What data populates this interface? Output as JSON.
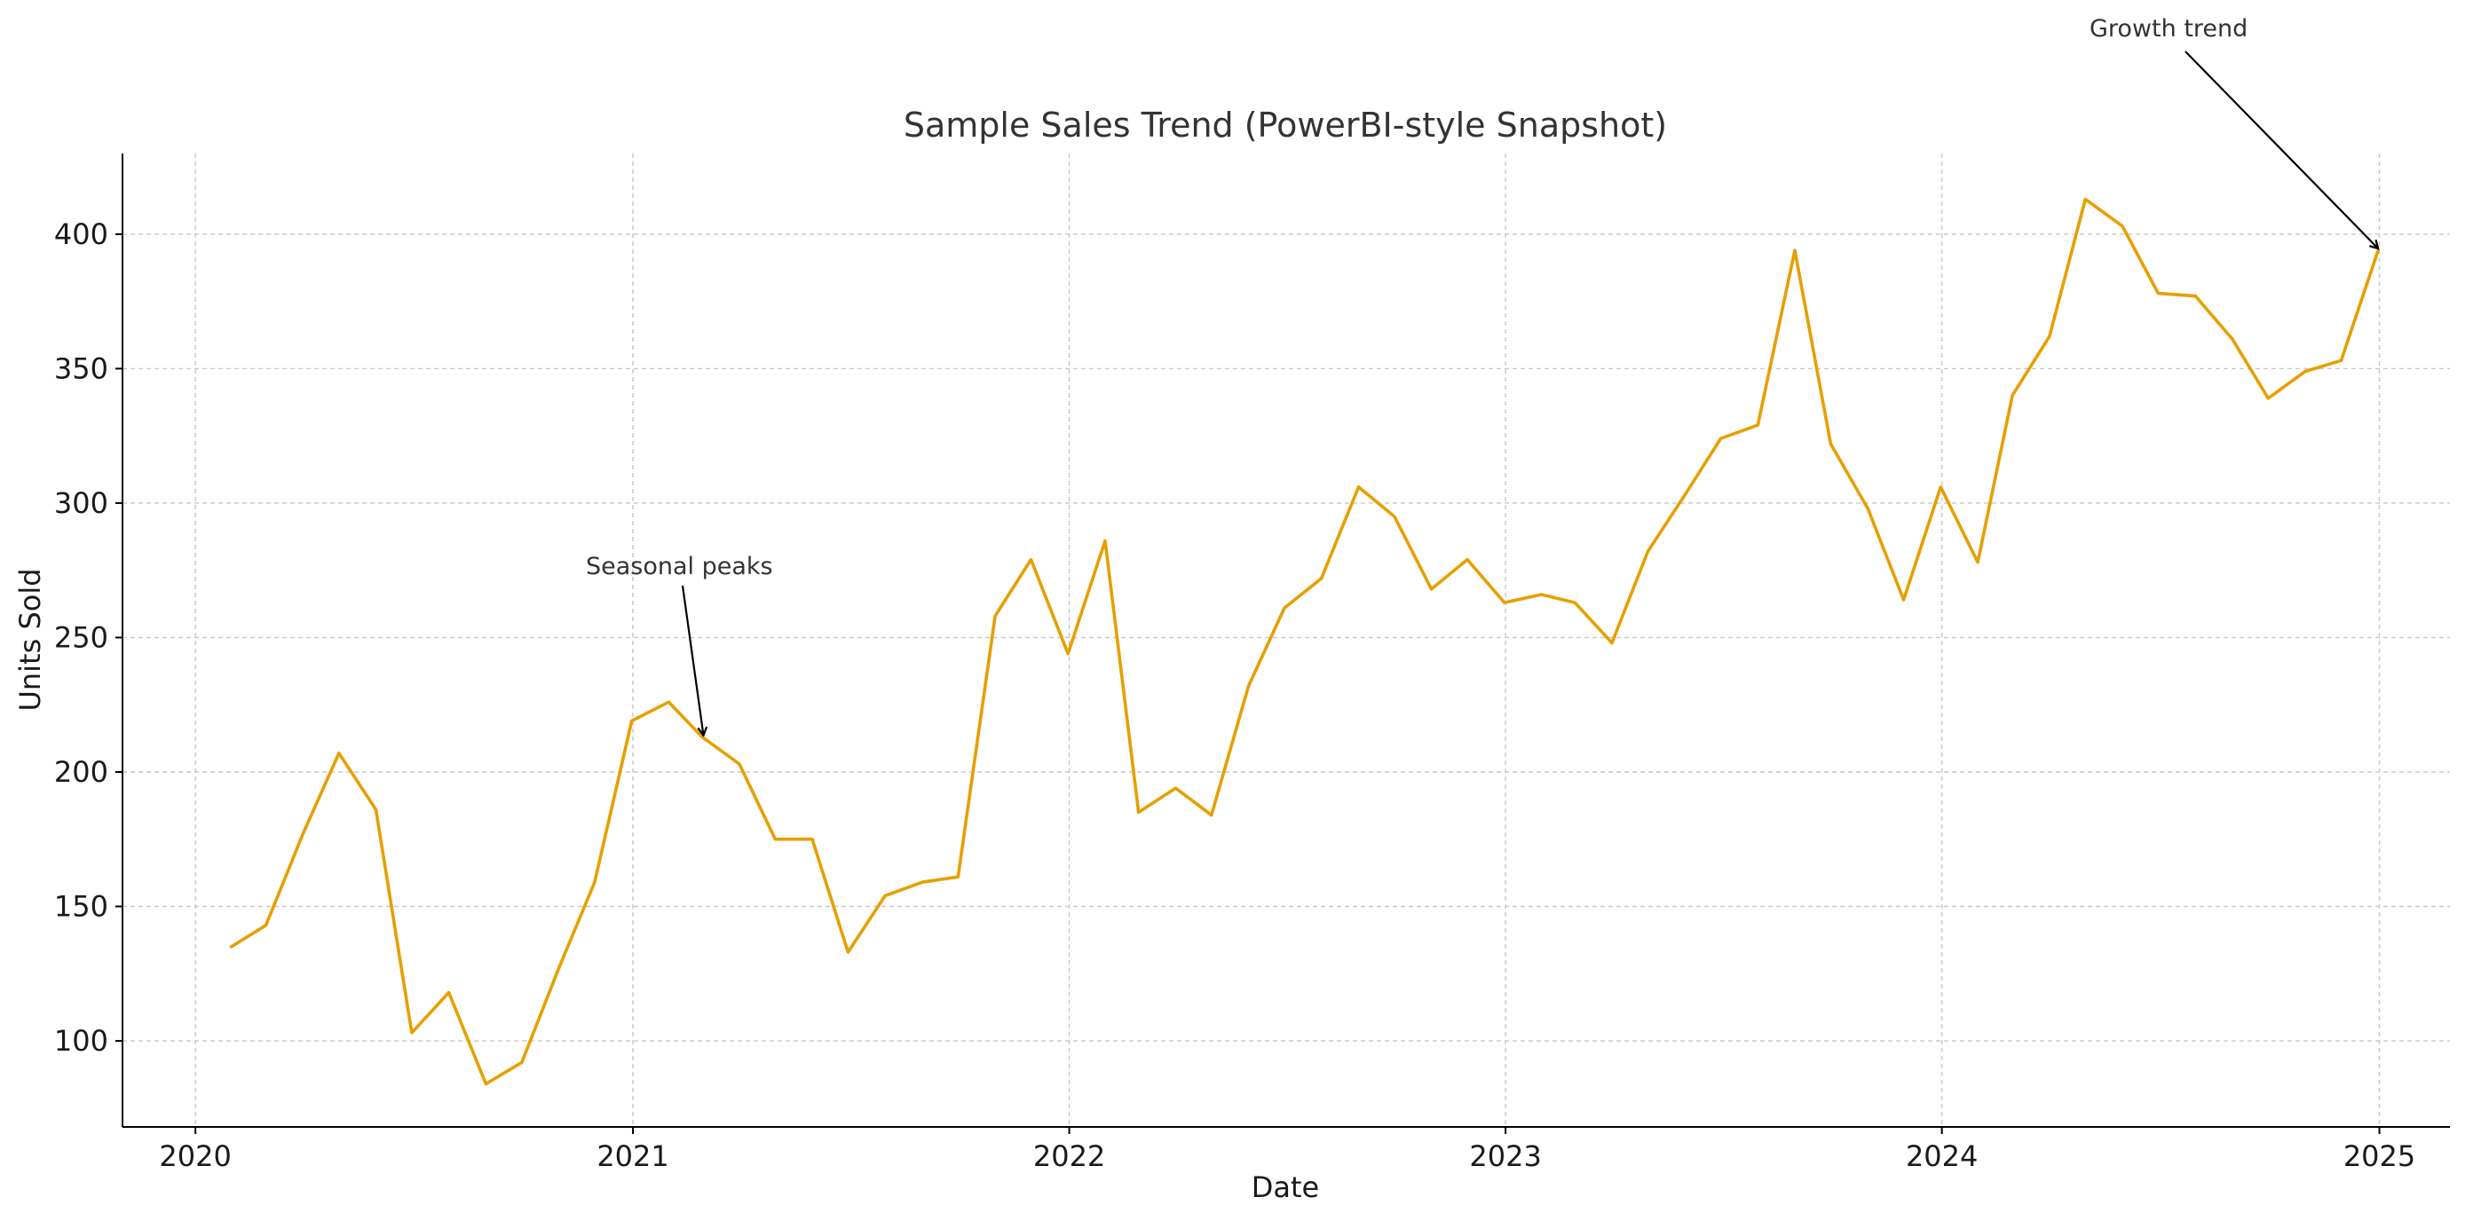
{
  "chart_data": {
    "type": "line",
    "title": "Sample Sales Trend (PowerBI-style Snapshot)",
    "xlabel": "Date",
    "ylabel": "Units Sold",
    "x_axis_kind": "date",
    "xlim": [
      "2019-11-01",
      "2025-03-01"
    ],
    "ylim": [
      68,
      430
    ],
    "x_ticks": [
      "2020",
      "2021",
      "2022",
      "2023",
      "2024",
      "2025"
    ],
    "x_tick_dates": [
      "2020-01-01",
      "2021-01-01",
      "2022-01-01",
      "2023-01-01",
      "2024-01-01",
      "2025-01-01"
    ],
    "y_ticks": [
      100,
      150,
      200,
      250,
      300,
      350,
      400
    ],
    "grid": true,
    "legend": false,
    "series": [
      {
        "color": "#e69f00",
        "x": [
          "2020-01-31",
          "2020-02-29",
          "2020-03-31",
          "2020-04-30",
          "2020-05-31",
          "2020-06-30",
          "2020-07-31",
          "2020-08-31",
          "2020-09-30",
          "2020-10-31",
          "2020-11-30",
          "2020-12-31",
          "2021-01-31",
          "2021-02-28",
          "2021-03-31",
          "2021-04-30",
          "2021-05-31",
          "2021-06-30",
          "2021-07-31",
          "2021-08-31",
          "2021-09-30",
          "2021-10-31",
          "2021-11-30",
          "2021-12-31",
          "2022-01-31",
          "2022-02-28",
          "2022-03-31",
          "2022-04-30",
          "2022-05-31",
          "2022-06-30",
          "2022-07-31",
          "2022-08-31",
          "2022-09-30",
          "2022-10-31",
          "2022-11-30",
          "2022-12-31",
          "2023-01-31",
          "2023-02-28",
          "2023-03-31",
          "2023-04-30",
          "2023-05-31",
          "2023-06-30",
          "2023-07-31",
          "2023-08-31",
          "2023-09-30",
          "2023-10-31",
          "2023-11-30",
          "2023-12-31",
          "2024-01-31",
          "2024-02-29",
          "2024-03-31",
          "2024-04-30",
          "2024-05-31",
          "2024-06-30",
          "2024-07-31",
          "2024-08-31",
          "2024-09-30",
          "2024-10-31",
          "2024-11-30",
          "2024-12-31"
        ],
        "values": [
          135,
          143,
          177,
          207,
          186,
          103,
          118,
          84,
          92,
          127,
          159,
          219,
          226,
          213,
          203,
          175,
          175,
          133,
          154,
          159,
          161,
          258,
          279,
          244,
          286,
          185,
          194,
          184,
          232,
          261,
          272,
          306,
          295,
          268,
          279,
          263,
          266,
          263,
          248,
          282,
          303,
          324,
          329,
          394,
          322,
          298,
          264,
          306,
          278,
          340,
          362,
          413,
          403,
          378,
          377,
          361,
          339,
          349,
          353,
          394
        ]
      }
    ],
    "annotations": [
      {
        "text": "Seasonal peaks",
        "point_x": "2021-03-01",
        "point_y": 213
      },
      {
        "text": "Growth trend",
        "point_x": "2024-12-31",
        "point_y": 394
      }
    ]
  }
}
